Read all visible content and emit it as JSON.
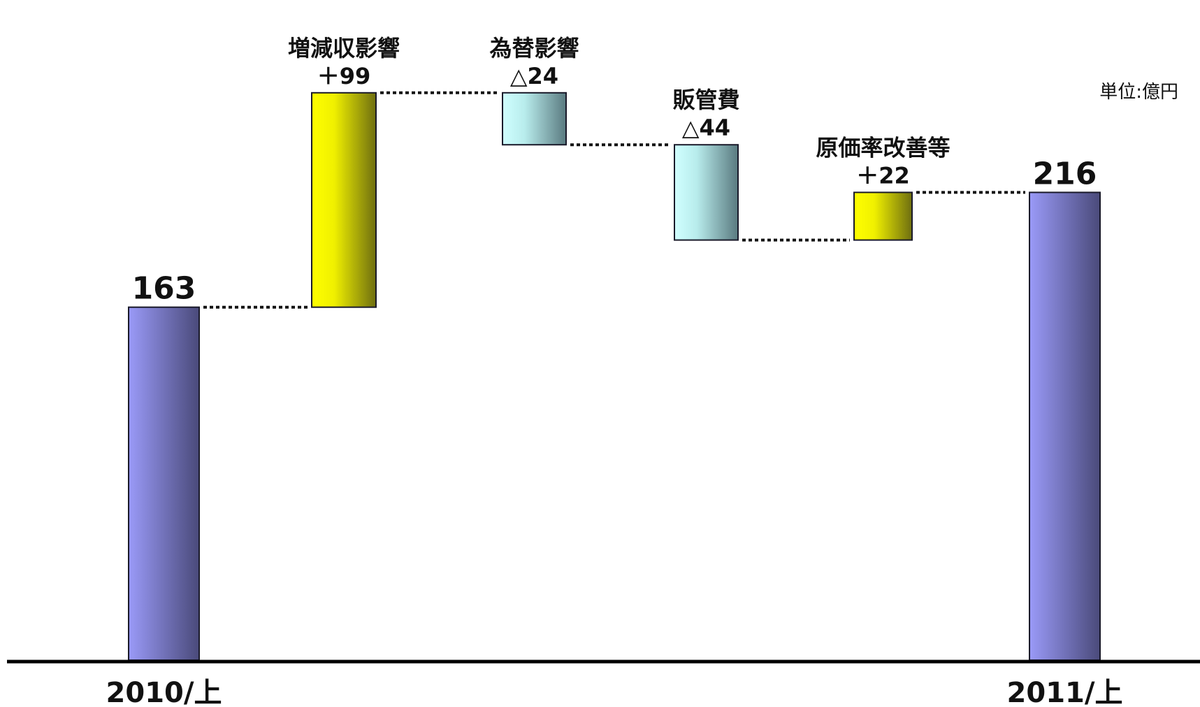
{
  "chart_data": {
    "type": "waterfall",
    "unit_label": "単位:億円",
    "steps": [
      {
        "kind": "total",
        "category": "2010/上",
        "value_label": "163",
        "value": 163
      },
      {
        "kind": "change",
        "name": "増減収影響",
        "value_label": "＋99",
        "value": 99
      },
      {
        "kind": "change",
        "name": "為替影響",
        "value_label": "△24",
        "value": -24
      },
      {
        "kind": "change",
        "name": "販管費",
        "value_label": "△44",
        "value": -44
      },
      {
        "kind": "change",
        "name": "原価率改善等",
        "value_label": "＋22",
        "value": 22
      },
      {
        "kind": "total",
        "category": "2011/上",
        "value_label": "216",
        "value": 216
      }
    ],
    "colors": {
      "total": "#8f8ff0",
      "total_dark": "#4a4a7a",
      "increase": "#ffff00",
      "increase_dark": "#77770a",
      "decrease": "#ccffff",
      "decrease_dark": "#5d8088"
    }
  }
}
